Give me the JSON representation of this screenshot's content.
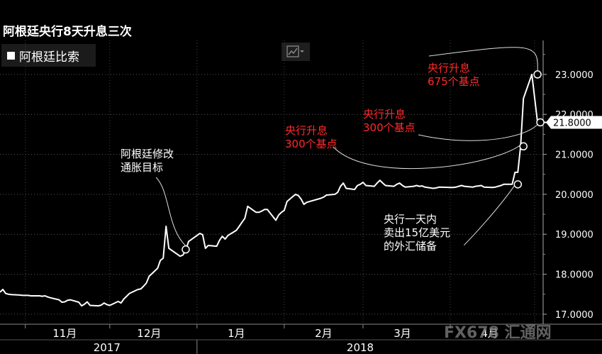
{
  "title": "阿根廷央行8天升息三次",
  "legend": {
    "label": "阿根廷比索"
  },
  "chart_type_button": "chart-type-line-icon",
  "watermark": "FX678 汇通网",
  "chart_data": {
    "type": "line",
    "title": "阿根廷央行8天升息三次",
    "series": [
      {
        "name": "阿根廷比索",
        "color": "#ffffff",
        "x": [
          "2017-10-23",
          "2017-10-24",
          "2017-10-25",
          "2017-10-26",
          "2017-10-27",
          "2017-10-30",
          "2017-10-31",
          "2017-11-01",
          "2017-11-02",
          "2017-11-03",
          "2017-11-06",
          "2017-11-07",
          "2017-11-08",
          "2017-11-09",
          "2017-11-10",
          "2017-11-13",
          "2017-11-14",
          "2017-11-15",
          "2017-11-16",
          "2017-11-17",
          "2017-11-20",
          "2017-11-21",
          "2017-11-22",
          "2017-11-23",
          "2017-11-24",
          "2017-11-27",
          "2017-11-28",
          "2017-11-29",
          "2017-11-30",
          "2017-12-01",
          "2017-12-04",
          "2017-12-05",
          "2017-12-06",
          "2017-12-07",
          "2017-12-08",
          "2017-12-11",
          "2017-12-12",
          "2017-12-13",
          "2017-12-14",
          "2017-12-15",
          "2017-12-18",
          "2017-12-19",
          "2017-12-20",
          "2017-12-21",
          "2017-12-22",
          "2017-12-26",
          "2017-12-27",
          "2017-12-28",
          "2017-12-29",
          "2018-01-02",
          "2018-01-03",
          "2018-01-04",
          "2018-01-05",
          "2018-01-08",
          "2018-01-09",
          "2018-01-10",
          "2018-01-11",
          "2018-01-12",
          "2018-01-15",
          "2018-01-16",
          "2018-01-17",
          "2018-01-18",
          "2018-01-19",
          "2018-01-22",
          "2018-01-23",
          "2018-01-24",
          "2018-01-25",
          "2018-01-26",
          "2018-01-29",
          "2018-01-30",
          "2018-01-31",
          "2018-02-01",
          "2018-02-02",
          "2018-02-05",
          "2018-02-06",
          "2018-02-07",
          "2018-02-08",
          "2018-02-09",
          "2018-02-14",
          "2018-02-15",
          "2018-02-16",
          "2018-02-19",
          "2018-02-20",
          "2018-02-21",
          "2018-02-22",
          "2018-02-23",
          "2018-02-26",
          "2018-02-27",
          "2018-02-28",
          "2018-03-01",
          "2018-03-02",
          "2018-03-05",
          "2018-03-06",
          "2018-03-07",
          "2018-03-08",
          "2018-03-09",
          "2018-03-12",
          "2018-03-13",
          "2018-03-14",
          "2018-03-15",
          "2018-03-16",
          "2018-03-19",
          "2018-03-20",
          "2018-03-21",
          "2018-03-22",
          "2018-03-23",
          "2018-03-26",
          "2018-03-27",
          "2018-03-28",
          "2018-04-02",
          "2018-04-03",
          "2018-04-04",
          "2018-04-05",
          "2018-04-06",
          "2018-04-09",
          "2018-04-10",
          "2018-04-11",
          "2018-04-12",
          "2018-04-13",
          "2018-04-16",
          "2018-04-17",
          "2018-04-18",
          "2018-04-19",
          "2018-04-20",
          "2018-04-23",
          "2018-04-24",
          "2018-04-25",
          "2018-04-26",
          "2018-04-27",
          "2018-04-30",
          "2018-05-02",
          "2018-05-03",
          "2018-05-04",
          "2018-05-07"
        ],
        "values": [
          17.55,
          17.62,
          17.52,
          17.5,
          17.49,
          17.48,
          17.47,
          17.47,
          17.47,
          17.46,
          17.46,
          17.45,
          17.46,
          17.43,
          17.41,
          17.36,
          17.3,
          17.31,
          17.35,
          17.36,
          17.3,
          17.21,
          17.25,
          17.31,
          17.22,
          17.21,
          17.23,
          17.28,
          17.24,
          17.22,
          17.32,
          17.28,
          17.38,
          17.45,
          17.52,
          17.62,
          17.63,
          17.7,
          17.78,
          17.95,
          18.15,
          18.35,
          18.4,
          19.2,
          18.65,
          18.45,
          18.48,
          18.6,
          18.82,
          19.02,
          18.99,
          18.65,
          18.72,
          18.7,
          18.85,
          18.95,
          18.88,
          18.97,
          19.1,
          19.2,
          19.3,
          19.4,
          19.7,
          19.55,
          19.55,
          19.58,
          19.62,
          19.62,
          19.35,
          19.48,
          19.55,
          19.6,
          19.82,
          20.0,
          19.97,
          19.88,
          19.75,
          19.8,
          19.9,
          19.93,
          19.98,
          20.0,
          20.05,
          20.2,
          20.28,
          20.15,
          20.12,
          20.22,
          20.25,
          20.3,
          20.22,
          20.2,
          20.28,
          20.35,
          20.28,
          20.22,
          20.2,
          20.25,
          20.28,
          20.22,
          20.18,
          20.2,
          20.22,
          20.2,
          20.21,
          20.18,
          20.15,
          20.16,
          20.18,
          20.17,
          20.18,
          20.2,
          20.22,
          20.2,
          20.18,
          20.2,
          20.21,
          20.22,
          20.18,
          20.17,
          20.18,
          20.2,
          20.22,
          20.25,
          20.25,
          20.55,
          20.55,
          21.2,
          22.4,
          23.0,
          21.8,
          21.8,
          21.8,
          21.8
        ]
      }
    ],
    "yaxis": {
      "position": "right",
      "ylim": [
        16.75,
        23.85
      ],
      "ticks": [
        "17.0000",
        "18.0000",
        "19.0000",
        "20.0000",
        "21.0000",
        "22.0000",
        "23.0000"
      ]
    },
    "xaxis": {
      "xlim": [
        "2017-10-23",
        "2018-05-04"
      ],
      "month_labels": [
        {
          "label": "11月",
          "date": "2017-11-15"
        },
        {
          "label": "12月",
          "date": "2017-12-15"
        },
        {
          "label": "1月",
          "date": "2018-01-15"
        },
        {
          "label": "2月",
          "date": "2018-02-15"
        },
        {
          "label": "3月",
          "date": "2018-03-15"
        },
        {
          "label": "4月",
          "date": "2018-04-15"
        }
      ],
      "year_labels": [
        {
          "label": "2017",
          "date": "2017-11-30"
        },
        {
          "label": "2018",
          "date": "2018-02-28"
        }
      ],
      "year_divider": "2018-01-01"
    },
    "last_value": {
      "label": "21.8000",
      "value": 21.8
    },
    "annotations": [
      {
        "lines": [
          "阿根廷修改",
          "通胀目标"
        ],
        "color": "#ffffff",
        "target_date": "2017-12-28",
        "target_value": 18.62
      },
      {
        "lines": [
          "央行升息",
          "300个基点"
        ],
        "color": "#ff2a2a",
        "target_date": "2018-04-27",
        "target_value": 21.2
      },
      {
        "lines": [
          "央行升息",
          "300个基点"
        ],
        "color": "#ff2a2a",
        "target_date": "2018-05-03",
        "target_value": 21.8
      },
      {
        "lines": [
          "央行升息",
          "675个基点"
        ],
        "color": "#ff2a2a",
        "target_date": "2018-05-02",
        "target_value": 23.0
      },
      {
        "lines": [
          "央行一天内",
          "卖出15亿美元",
          "的外汇储备"
        ],
        "color": "#ffffff",
        "target_date": "2018-04-25",
        "target_value": 20.25
      }
    ]
  }
}
